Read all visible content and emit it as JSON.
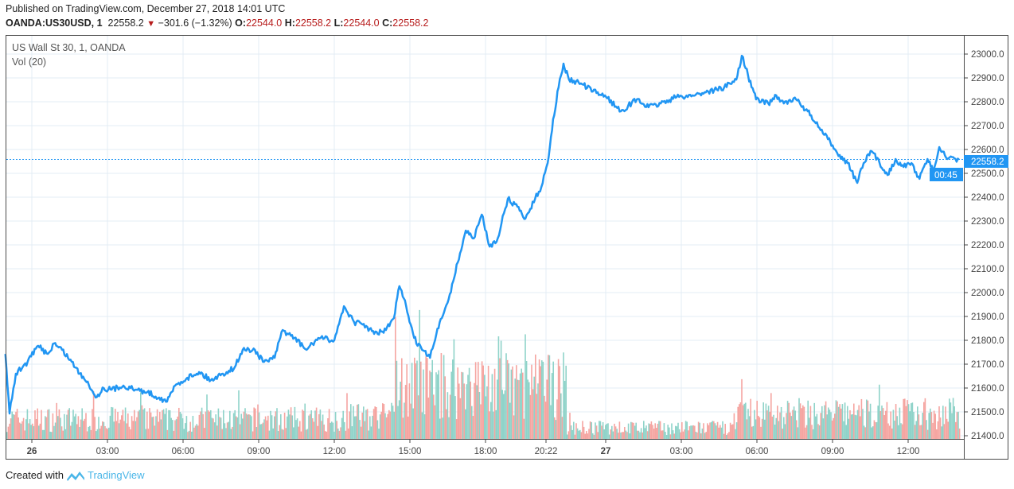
{
  "header": {
    "published": "Published on TradingView.com, December 27, 2018 14:01 UTC",
    "symbol": "OANDA:US30USD, 1",
    "last": "22558.2",
    "change": "−301.6 (−1.32%)",
    "o_label": "O:",
    "o": "22544.0",
    "h_label": "H:",
    "h": "22558.2",
    "l_label": "L:",
    "l": "22544.0",
    "c_label": "C:",
    "c": "22558.2",
    "direction_icon": "down-triangle-icon"
  },
  "legend": {
    "series": "US Wall St 30, 1, OANDA",
    "volume": "Vol (20)"
  },
  "footer": {
    "created_with": "Created with",
    "brand": "TradingView",
    "brand_icon": "tradingview-logo-icon"
  },
  "colors": {
    "line": "#2196f3",
    "vol_up": "#8fd3c9",
    "vol_down": "#f5a5a1",
    "price_label": "#2196f3",
    "down": "#b71c1c"
  },
  "chart_data": {
    "type": "line",
    "title": "US Wall St 30, 1, OANDA",
    "ylim": [
      21400,
      23050
    ],
    "y_ticks": [
      "23000.0",
      "22900.0",
      "22800.0",
      "22700.0",
      "22600.0",
      "22500.0",
      "22400.0",
      "22300.0",
      "22200.0",
      "22100.0",
      "22000.0",
      "21900.0",
      "21800.0",
      "21700.0",
      "21600.0",
      "21500.0",
      "21400.0"
    ],
    "x_ticks": [
      "26",
      "03:00",
      "06:00",
      "09:00",
      "12:00",
      "15:00",
      "18:00",
      "20:22",
      "27",
      "03:00",
      "06:00",
      "09:00",
      "12:00"
    ],
    "grid": true,
    "last_price_label": "22558.2",
    "countdown_label": "00:45",
    "series": [
      {
        "points": [
          [
            "2018-12-25 22:57",
            21743
          ],
          [
            "2018-12-25 23:07",
            21493
          ],
          [
            "2018-12-25 23:22",
            21660
          ],
          [
            "2018-12-25 23:50",
            21710
          ],
          [
            "2018-12-26 00:15",
            21777
          ],
          [
            "2018-12-26 00:38",
            21743
          ],
          [
            "2018-12-26 00:53",
            21787
          ],
          [
            "2018-12-26 01:12",
            21760
          ],
          [
            "2018-12-26 01:35",
            21710
          ],
          [
            "2018-12-26 01:54",
            21660
          ],
          [
            "2018-12-26 02:13",
            21627
          ],
          [
            "2018-12-26 02:32",
            21560
          ],
          [
            "2018-12-26 02:51",
            21600
          ],
          [
            "2018-12-26 03:10",
            21593
          ],
          [
            "2018-12-26 03:38",
            21610
          ],
          [
            "2018-12-26 04:06",
            21593
          ],
          [
            "2018-12-26 04:35",
            21583
          ],
          [
            "2018-12-26 05:03",
            21560
          ],
          [
            "2018-12-26 05:22",
            21543
          ],
          [
            "2018-12-26 05:41",
            21610
          ],
          [
            "2018-12-26 06:10",
            21643
          ],
          [
            "2018-12-26 06:38",
            21667
          ],
          [
            "2018-12-26 07:06",
            21633
          ],
          [
            "2018-12-26 07:35",
            21660
          ],
          [
            "2018-12-26 08:03",
            21687
          ],
          [
            "2018-12-26 08:22",
            21760
          ],
          [
            "2018-12-26 08:51",
            21760
          ],
          [
            "2018-12-26 09:10",
            21710
          ],
          [
            "2018-12-26 09:38",
            21727
          ],
          [
            "2018-12-26 09:57",
            21843
          ],
          [
            "2018-12-26 10:25",
            21810
          ],
          [
            "2018-12-26 10:54",
            21760
          ],
          [
            "2018-12-26 11:22",
            21810
          ],
          [
            "2018-12-26 12:00",
            21800
          ],
          [
            "2018-12-26 12:23",
            21943
          ],
          [
            "2018-12-26 12:47",
            21877
          ],
          [
            "2018-12-26 13:16",
            21860
          ],
          [
            "2018-12-26 13:35",
            21827
          ],
          [
            "2018-12-26 14:03",
            21843
          ],
          [
            "2018-12-26 14:22",
            21893
          ],
          [
            "2018-12-26 14:35",
            22027
          ],
          [
            "2018-12-26 14:51",
            21943
          ],
          [
            "2018-12-26 15:10",
            21810
          ],
          [
            "2018-12-26 15:29",
            21760
          ],
          [
            "2018-12-26 15:48",
            21727
          ],
          [
            "2018-12-26 16:03",
            21827
          ],
          [
            "2018-12-26 16:16",
            21893
          ],
          [
            "2018-12-26 16:35",
            21993
          ],
          [
            "2018-12-26 16:54",
            22127
          ],
          [
            "2018-12-26 17:13",
            22260
          ],
          [
            "2018-12-26 17:32",
            22227
          ],
          [
            "2018-12-26 17:51",
            22327
          ],
          [
            "2018-12-26 18:10",
            22193
          ],
          [
            "2018-12-26 18:29",
            22227
          ],
          [
            "2018-12-26 18:53",
            22393
          ],
          [
            "2018-12-26 19:16",
            22360
          ],
          [
            "2018-12-26 19:35",
            22310
          ],
          [
            "2018-12-26 19:58",
            22393
          ],
          [
            "2018-12-26 20:13",
            22443
          ],
          [
            "2018-12-26 20:28",
            22543
          ],
          [
            "2018-12-26 20:48",
            22727
          ],
          [
            "2018-12-26 21:08",
            22860
          ],
          [
            "2018-12-26 21:26",
            22960
          ],
          [
            "2018-12-26 21:46",
            22893
          ],
          [
            "2018-12-26 22:30",
            22877
          ],
          [
            "2018-12-26 23:13",
            22843
          ],
          [
            "2018-12-26 23:57",
            22827
          ],
          [
            "2018-12-27 00:36",
            22760
          ],
          [
            "2018-12-27 01:14",
            22810
          ],
          [
            "2018-12-27 01:42",
            22777
          ],
          [
            "2018-12-27 02:11",
            22793
          ],
          [
            "2018-12-27 02:49",
            22820
          ],
          [
            "2018-12-27 03:27",
            22827
          ],
          [
            "2018-12-27 04:04",
            22843
          ],
          [
            "2018-12-27 04:42",
            22860
          ],
          [
            "2018-12-27 05:11",
            22893
          ],
          [
            "2018-12-27 05:24",
            22993
          ],
          [
            "2018-12-27 05:39",
            22910
          ],
          [
            "2018-12-27 05:58",
            22810
          ],
          [
            "2018-12-27 06:27",
            22793
          ],
          [
            "2018-12-27 06:46",
            22827
          ],
          [
            "2018-12-27 07:04",
            22793
          ],
          [
            "2018-12-27 07:33",
            22810
          ],
          [
            "2018-12-27 08:01",
            22760
          ],
          [
            "2018-12-27 08:20",
            22710
          ],
          [
            "2018-12-27 08:49",
            22643
          ],
          [
            "2018-12-27 09:17",
            22577
          ],
          [
            "2018-12-27 09:36",
            22543
          ],
          [
            "2018-12-27 09:59",
            22460
          ],
          [
            "2018-12-27 10:14",
            22543
          ],
          [
            "2018-12-27 10:33",
            22593
          ],
          [
            "2018-12-27 10:52",
            22543
          ],
          [
            "2018-12-27 11:11",
            22493
          ],
          [
            "2018-12-27 11:30",
            22560
          ],
          [
            "2018-12-27 11:49",
            22527
          ],
          [
            "2018-12-27 12:08",
            22543
          ],
          [
            "2018-12-27 12:27",
            22477
          ],
          [
            "2018-12-27 12:46",
            22560
          ],
          [
            "2018-12-27 12:59",
            22510
          ],
          [
            "2018-12-27 13:14",
            22610
          ],
          [
            "2018-12-27 13:33",
            22560
          ],
          [
            "2018-12-27 14:01",
            22558.2
          ]
        ]
      }
    ]
  }
}
